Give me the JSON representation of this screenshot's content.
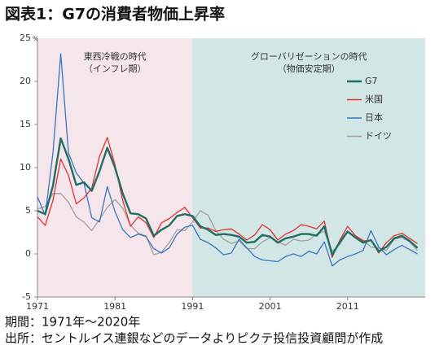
{
  "chart_data": {
    "type": "line",
    "title": "図表1：G7の消費者物価上昇率",
    "unit": "%",
    "footnotes": [
      "期間：1971年～2020年",
      "出所：セントルイス連銀などのデータよりピクテ投信投資顧問が作成"
    ],
    "periods": [
      {
        "label": [
          "東西冷戦の時代",
          "（インフレ期）"
        ],
        "start": 1971,
        "end": 1991,
        "color": "#f5e6ec"
      },
      {
        "label": [
          "グローバリゼーションの時代",
          "（物価安定期）"
        ],
        "start": 1991,
        "end": 2021,
        "color": "#d3e6e6"
      }
    ],
    "x": [
      1971,
      1972,
      1973,
      1974,
      1975,
      1976,
      1977,
      1978,
      1979,
      1980,
      1981,
      1982,
      1983,
      1984,
      1985,
      1986,
      1987,
      1988,
      1989,
      1990,
      1991,
      1992,
      1993,
      1994,
      1995,
      1996,
      1997,
      1998,
      1999,
      2000,
      2001,
      2002,
      2003,
      2004,
      2005,
      2006,
      2007,
      2008,
      2009,
      2010,
      2011,
      2012,
      2013,
      2014,
      2015,
      2016,
      2017,
      2018,
      2019,
      2020
    ],
    "xlim": [
      1971,
      2021
    ],
    "xticks": [
      1971,
      1981,
      1991,
      2001,
      2011
    ],
    "ylim": [
      -5,
      25
    ],
    "yticks": [
      -5,
      0,
      5,
      10,
      15,
      20,
      25
    ],
    "legend": "right",
    "series": [
      {
        "name": "G7",
        "color": "#1f6e63",
        "values": [
          5.0,
          4.6,
          7.9,
          13.4,
          11.0,
          8.0,
          8.3,
          7.3,
          9.6,
          12.3,
          10.0,
          7.0,
          4.7,
          4.6,
          4.1,
          2.1,
          2.8,
          3.3,
          4.4,
          4.6,
          4.4,
          3.2,
          2.8,
          2.2,
          2.3,
          2.2,
          2.0,
          1.3,
          1.4,
          2.2,
          2.0,
          1.3,
          1.8,
          2.0,
          2.3,
          2.3,
          2.1,
          3.2,
          -0.1,
          1.4,
          2.6,
          1.9,
          1.3,
          1.6,
          0.3,
          0.8,
          1.8,
          2.1,
          1.5,
          0.7
        ]
      },
      {
        "name": "米国",
        "color": "#e0312f",
        "values": [
          4.3,
          3.3,
          6.2,
          11.0,
          9.1,
          5.8,
          6.5,
          7.6,
          11.3,
          13.5,
          10.3,
          6.2,
          3.2,
          4.3,
          3.6,
          1.9,
          3.6,
          4.1,
          4.8,
          5.4,
          4.2,
          3.0,
          3.0,
          2.6,
          2.8,
          2.9,
          2.3,
          1.6,
          2.2,
          3.4,
          2.8,
          1.6,
          2.3,
          2.7,
          3.4,
          3.2,
          2.9,
          3.8,
          -0.4,
          1.6,
          3.2,
          2.1,
          1.5,
          1.6,
          0.1,
          1.3,
          2.1,
          2.4,
          1.8,
          1.2
        ]
      },
      {
        "name": "日本",
        "color": "#3a75c4",
        "values": [
          6.6,
          4.5,
          11.7,
          23.2,
          11.7,
          9.4,
          8.2,
          4.2,
          3.7,
          7.8,
          4.9,
          2.8,
          1.9,
          2.3,
          2.0,
          0.6,
          0.1,
          0.7,
          2.3,
          3.1,
          3.3,
          1.7,
          1.3,
          0.7,
          -0.1,
          0.1,
          1.7,
          0.7,
          -0.3,
          -0.7,
          -0.8,
          -0.9,
          -0.3,
          0.0,
          -0.3,
          0.3,
          0.0,
          1.4,
          -1.4,
          -0.7,
          -0.3,
          0.0,
          0.4,
          2.7,
          0.8,
          -0.1,
          0.5,
          1.0,
          0.5,
          0.0
        ]
      },
      {
        "name": "ドイツ",
        "color": "#a0a0a0",
        "values": [
          5.2,
          5.5,
          7.0,
          7.0,
          6.0,
          4.3,
          3.7,
          2.7,
          4.0,
          5.4,
          6.3,
          5.3,
          3.3,
          2.4,
          2.1,
          -0.1,
          0.2,
          1.3,
          2.8,
          2.7,
          3.7,
          5.0,
          4.5,
          2.7,
          1.7,
          1.2,
          1.5,
          0.6,
          0.6,
          1.4,
          1.9,
          1.4,
          1.0,
          1.7,
          1.5,
          1.6,
          2.3,
          2.6,
          0.3,
          1.1,
          2.5,
          2.1,
          1.6,
          0.8,
          0.7,
          0.4,
          1.7,
          1.9,
          1.4,
          0.4
        ]
      }
    ]
  }
}
